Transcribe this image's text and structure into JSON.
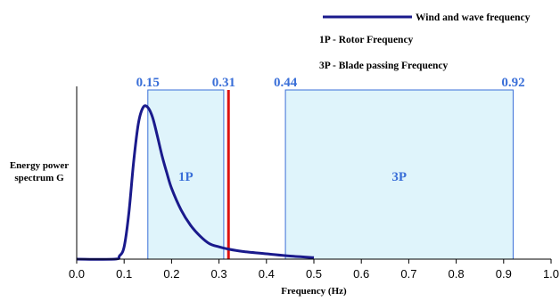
{
  "chart_data": {
    "type": "line",
    "xlabel": "Frequency (Hz)",
    "ylabel_lines": [
      "Energy power",
      "spectrum G"
    ],
    "xlim": [
      0.0,
      1.0
    ],
    "x_ticks": [
      "0.0",
      "0.1",
      "0.2",
      "0.3",
      "0.4",
      "0.5",
      "0.6",
      "0.7",
      "0.8",
      "0.9",
      "1.0"
    ],
    "grid": false,
    "legend": {
      "placement": "top-right",
      "entries": [
        {
          "label": "Wind and wave frequency",
          "marker": "line",
          "color": "#1a1a8c"
        },
        {
          "label": "1P - Rotor Frequency",
          "marker": "none"
        },
        {
          "label": "3P - Blade passing Frequency",
          "marker": "none"
        }
      ]
    },
    "series": [
      {
        "name": "Wind and wave frequency",
        "color": "#1a1a8c",
        "x": [
          0.0,
          0.08,
          0.09,
          0.1,
          0.11,
          0.12,
          0.13,
          0.14,
          0.15,
          0.16,
          0.17,
          0.18,
          0.19,
          0.2,
          0.22,
          0.24,
          0.26,
          0.28,
          0.3,
          0.32,
          0.35,
          0.4,
          0.45,
          0.5
        ],
        "y": [
          0.0,
          0.0,
          0.02,
          0.08,
          0.3,
          0.63,
          0.88,
          0.985,
          0.985,
          0.92,
          0.8,
          0.67,
          0.56,
          0.46,
          0.32,
          0.22,
          0.15,
          0.1,
          0.08,
          0.065,
          0.05,
          0.035,
          0.02,
          0.01
        ]
      }
    ],
    "bands": [
      {
        "label": "1P",
        "from": 0.15,
        "to": 0.31,
        "from_label": "0.15",
        "to_label": "0.31",
        "fill": "#dff4fb",
        "stroke": "#3a6fd8"
      },
      {
        "label": "3P",
        "from": 0.44,
        "to": 0.92,
        "from_label": "0.44",
        "to_label": "0.92",
        "fill": "#dff4fb",
        "stroke": "#3a6fd8"
      }
    ],
    "vline": {
      "x": 0.32,
      "color": "#dd1111"
    },
    "colors": {
      "axis": "#000000",
      "band_label": "#3a6fd8"
    }
  }
}
